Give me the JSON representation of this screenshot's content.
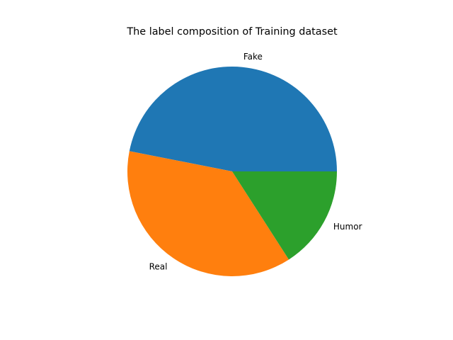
{
  "chart_data": {
    "type": "pie",
    "title": "The label composition of Training dataset",
    "categories": [
      "Fake",
      "Real",
      "Humor"
    ],
    "values": [
      46.9,
      37.2,
      15.9
    ],
    "colors": [
      "#1f77b4",
      "#ff7f0e",
      "#2ca02c"
    ],
    "start_angle_deg": 0,
    "direction": "counterclockwise",
    "legend": "none"
  }
}
